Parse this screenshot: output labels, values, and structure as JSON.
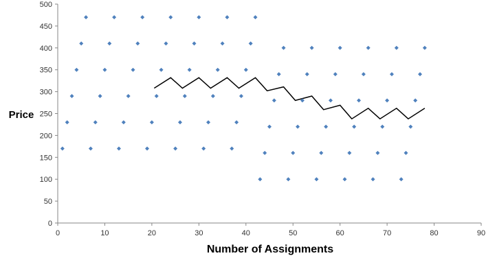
{
  "chart_data": {
    "type": "scatter",
    "xlabel": "Number of Assignments",
    "ylabel": "Price",
    "xlim": [
      0,
      90
    ],
    "ylim": [
      0,
      500
    ],
    "xticks": [
      0,
      10,
      20,
      30,
      40,
      50,
      60,
      70,
      80,
      90
    ],
    "yticks": [
      0,
      50,
      100,
      150,
      200,
      250,
      300,
      350,
      400,
      450,
      500
    ],
    "grid": false,
    "legend": "none",
    "series": [
      {
        "kind": "points",
        "color": "#4f81bd",
        "points": [
          [
            1,
            170
          ],
          [
            2,
            230
          ],
          [
            3,
            290
          ],
          [
            4,
            350
          ],
          [
            5,
            410
          ],
          [
            6,
            470
          ],
          [
            7,
            170
          ],
          [
            8,
            230
          ],
          [
            9,
            290
          ],
          [
            10,
            350
          ],
          [
            11,
            410
          ],
          [
            12,
            470
          ],
          [
            13,
            170
          ],
          [
            14,
            230
          ],
          [
            15,
            290
          ],
          [
            16,
            350
          ],
          [
            17,
            410
          ],
          [
            18,
            470
          ],
          [
            19,
            170
          ],
          [
            20,
            230
          ],
          [
            21,
            290
          ],
          [
            22,
            350
          ],
          [
            23,
            410
          ],
          [
            24,
            470
          ],
          [
            25,
            170
          ],
          [
            26,
            230
          ],
          [
            27,
            290
          ],
          [
            28,
            350
          ],
          [
            29,
            410
          ],
          [
            30,
            470
          ],
          [
            31,
            170
          ],
          [
            32,
            230
          ],
          [
            33,
            290
          ],
          [
            34,
            350
          ],
          [
            35,
            410
          ],
          [
            36,
            470
          ],
          [
            37,
            170
          ],
          [
            38,
            230
          ],
          [
            39,
            290
          ],
          [
            40,
            350
          ],
          [
            41,
            410
          ],
          [
            42,
            470
          ],
          [
            43,
            100
          ],
          [
            44,
            160
          ],
          [
            45,
            220
          ],
          [
            46,
            280
          ],
          [
            47,
            340
          ],
          [
            48,
            400
          ],
          [
            49,
            100
          ],
          [
            50,
            160
          ],
          [
            51,
            220
          ],
          [
            52,
            280
          ],
          [
            53,
            340
          ],
          [
            54,
            400
          ],
          [
            55,
            100
          ],
          [
            56,
            160
          ],
          [
            57,
            220
          ],
          [
            58,
            280
          ],
          [
            59,
            340
          ],
          [
            60,
            400
          ],
          [
            61,
            100
          ],
          [
            62,
            160
          ],
          [
            63,
            220
          ],
          [
            64,
            280
          ],
          [
            65,
            340
          ],
          [
            66,
            400
          ],
          [
            67,
            100
          ],
          [
            68,
            160
          ],
          [
            69,
            220
          ],
          [
            70,
            280
          ],
          [
            71,
            340
          ],
          [
            72,
            400
          ],
          [
            73,
            100
          ],
          [
            74,
            160
          ],
          [
            75,
            220
          ],
          [
            76,
            280
          ],
          [
            77,
            340
          ],
          [
            78,
            400
          ]
        ]
      },
      {
        "kind": "line",
        "color": "#000000",
        "points": [
          [
            20.5,
            308
          ],
          [
            24,
            332
          ],
          [
            26.5,
            308
          ],
          [
            30,
            332
          ],
          [
            32.5,
            308
          ],
          [
            36,
            332
          ],
          [
            38.5,
            308
          ],
          [
            42,
            332
          ],
          [
            44.5,
            302
          ],
          [
            48,
            311
          ],
          [
            50.5,
            280
          ],
          [
            54,
            290
          ],
          [
            56.5,
            259
          ],
          [
            60,
            269
          ],
          [
            62.5,
            238
          ],
          [
            66,
            262
          ],
          [
            68.5,
            238
          ],
          [
            72,
            262
          ],
          [
            74.5,
            238
          ],
          [
            78,
            262
          ]
        ]
      }
    ]
  }
}
